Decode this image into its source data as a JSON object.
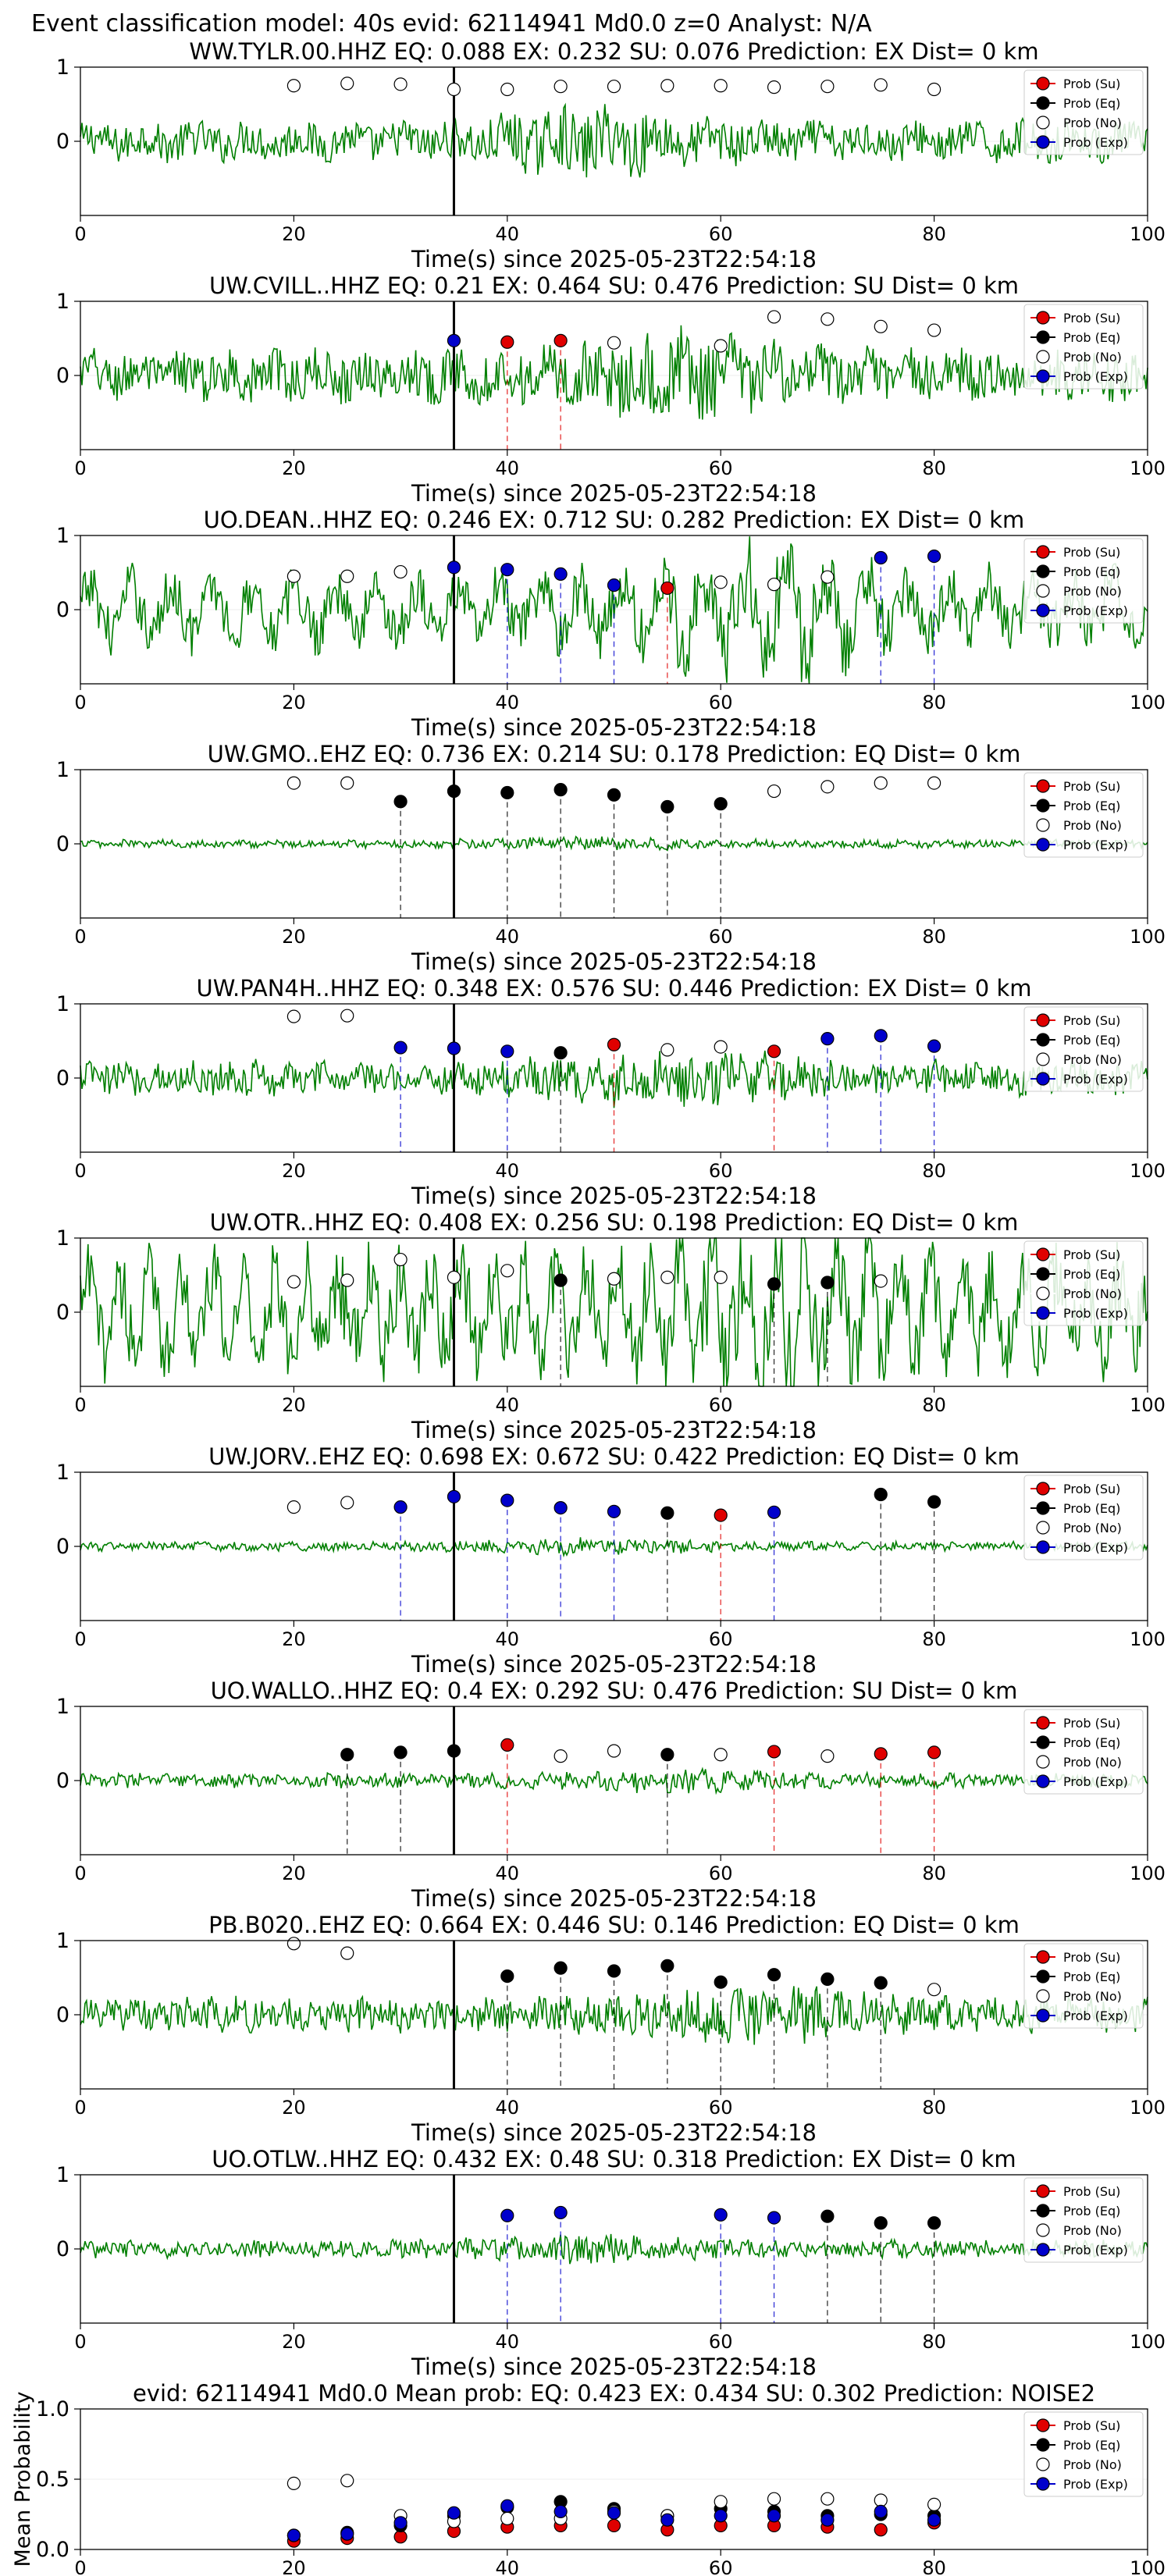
{
  "suptitle": "Event classification model: 40s evid: 62114941 Md0.0 z=0 Analyst: N/A",
  "xlabel": "Time(s) since 2025-05-23T22:54:18",
  "legend": [
    {
      "label": "Prob (Su)",
      "fill": "#e00000",
      "stroke": "#000000"
    },
    {
      "label": "Prob (Eq)",
      "fill": "#000000",
      "stroke": "#000000"
    },
    {
      "label": "Prob (No)",
      "fill": "#ffffff",
      "stroke": "#000000"
    },
    {
      "label": "Prob (Exp)",
      "fill": "#0000cc",
      "stroke": "#000000"
    }
  ],
  "colors": {
    "trace": "#007f00",
    "su": "#e00000",
    "eq": "#000000",
    "no": "#ffffff",
    "exp": "#0000cc",
    "pick": "#000000"
  },
  "chart_data": [
    {
      "type": "scatter",
      "title": "WW.TYLR.00.HHZ   EQ: 0.088  EX: 0.232  SU: 0.076   Prediction: EX    Dist= 0 km",
      "xlim": [
        0,
        100
      ],
      "ylim": [
        -1,
        1
      ],
      "xticks": [
        0,
        20,
        40,
        60,
        80,
        100
      ],
      "yticks": [
        0,
        1
      ],
      "pick_time": 35,
      "trace_amp": 0.35,
      "points": [
        {
          "x": 20,
          "y": 0.75,
          "c": "no"
        },
        {
          "x": 25,
          "y": 0.78,
          "c": "no"
        },
        {
          "x": 30,
          "y": 0.77,
          "c": "no"
        },
        {
          "x": 35,
          "y": 0.7,
          "c": "no"
        },
        {
          "x": 40,
          "y": 0.7,
          "c": "no"
        },
        {
          "x": 45,
          "y": 0.74,
          "c": "no"
        },
        {
          "x": 50,
          "y": 0.74,
          "c": "no"
        },
        {
          "x": 55,
          "y": 0.75,
          "c": "no"
        },
        {
          "x": 60,
          "y": 0.75,
          "c": "no"
        },
        {
          "x": 65,
          "y": 0.73,
          "c": "no"
        },
        {
          "x": 70,
          "y": 0.74,
          "c": "no"
        },
        {
          "x": 75,
          "y": 0.76,
          "c": "no"
        },
        {
          "x": 80,
          "y": 0.7,
          "c": "no"
        }
      ]
    },
    {
      "type": "scatter",
      "title": "UW.CVILL..HHZ   EQ: 0.21  EX: 0.464  SU: 0.476   Prediction: SU    Dist= 0 km",
      "xlim": [
        0,
        100
      ],
      "ylim": [
        -1,
        1
      ],
      "xticks": [
        0,
        20,
        40,
        60,
        80,
        100
      ],
      "yticks": [
        0,
        1
      ],
      "pick_time": 35,
      "trace_amp": 0.45,
      "points": [
        {
          "x": 35,
          "y": 0.47,
          "c": "exp"
        },
        {
          "x": 40,
          "y": 0.45,
          "c": "su"
        },
        {
          "x": 45,
          "y": 0.47,
          "c": "su"
        },
        {
          "x": 50,
          "y": 0.44,
          "c": "no"
        },
        {
          "x": 60,
          "y": 0.4,
          "c": "no"
        },
        {
          "x": 65,
          "y": 0.79,
          "c": "no"
        },
        {
          "x": 70,
          "y": 0.76,
          "c": "no"
        },
        {
          "x": 75,
          "y": 0.66,
          "c": "no"
        },
        {
          "x": 80,
          "y": 0.61,
          "c": "no"
        }
      ]
    },
    {
      "type": "scatter",
      "title": "UO.DEAN..HHZ   EQ: 0.246  EX: 0.712  SU: 0.282   Prediction: EX    Dist= 0 km",
      "xlim": [
        0,
        100
      ],
      "ylim": [
        -1,
        1
      ],
      "xticks": [
        0,
        20,
        40,
        60,
        80,
        100
      ],
      "yticks": [
        0,
        1
      ],
      "pick_time": 35,
      "trace_amp": 0.5,
      "points": [
        {
          "x": 20,
          "y": 0.45,
          "c": "no"
        },
        {
          "x": 25,
          "y": 0.45,
          "c": "no"
        },
        {
          "x": 30,
          "y": 0.51,
          "c": "no"
        },
        {
          "x": 35,
          "y": 0.57,
          "c": "exp"
        },
        {
          "x": 40,
          "y": 0.54,
          "c": "exp"
        },
        {
          "x": 45,
          "y": 0.48,
          "c": "exp"
        },
        {
          "x": 50,
          "y": 0.33,
          "c": "exp"
        },
        {
          "x": 55,
          "y": 0.29,
          "c": "su"
        },
        {
          "x": 60,
          "y": 0.37,
          "c": "no"
        },
        {
          "x": 65,
          "y": 0.34,
          "c": "no"
        },
        {
          "x": 70,
          "y": 0.44,
          "c": "no"
        },
        {
          "x": 75,
          "y": 0.7,
          "c": "exp"
        },
        {
          "x": 80,
          "y": 0.72,
          "c": "exp"
        }
      ]
    },
    {
      "type": "scatter",
      "title": "UW.GMO..EHZ   EQ: 0.736  EX: 0.214  SU: 0.178   Prediction: EQ    Dist= 0 km",
      "xlim": [
        0,
        100
      ],
      "ylim": [
        -1,
        1
      ],
      "xticks": [
        0,
        20,
        40,
        60,
        80,
        100
      ],
      "yticks": [
        0,
        1
      ],
      "pick_time": 35,
      "trace_amp": 0.07,
      "points": [
        {
          "x": 20,
          "y": 0.82,
          "c": "no"
        },
        {
          "x": 25,
          "y": 0.82,
          "c": "no"
        },
        {
          "x": 30,
          "y": 0.57,
          "c": "eq"
        },
        {
          "x": 35,
          "y": 0.71,
          "c": "eq"
        },
        {
          "x": 40,
          "y": 0.69,
          "c": "eq"
        },
        {
          "x": 45,
          "y": 0.73,
          "c": "eq"
        },
        {
          "x": 50,
          "y": 0.66,
          "c": "eq"
        },
        {
          "x": 55,
          "y": 0.5,
          "c": "eq"
        },
        {
          "x": 60,
          "y": 0.54,
          "c": "eq"
        },
        {
          "x": 65,
          "y": 0.71,
          "c": "no"
        },
        {
          "x": 70,
          "y": 0.77,
          "c": "no"
        },
        {
          "x": 75,
          "y": 0.82,
          "c": "no"
        },
        {
          "x": 80,
          "y": 0.82,
          "c": "no"
        }
      ]
    },
    {
      "type": "scatter",
      "title": "UW.PAN4H..HHZ   EQ: 0.348  EX: 0.576  SU: 0.446   Prediction: EX    Dist= 0 km",
      "xlim": [
        0,
        100
      ],
      "ylim": [
        -1,
        1
      ],
      "xticks": [
        0,
        20,
        40,
        60,
        80,
        100
      ],
      "yticks": [
        0,
        1
      ],
      "pick_time": 35,
      "trace_amp": 0.3,
      "points": [
        {
          "x": 20,
          "y": 0.83,
          "c": "no"
        },
        {
          "x": 25,
          "y": 0.84,
          "c": "no"
        },
        {
          "x": 30,
          "y": 0.41,
          "c": "exp"
        },
        {
          "x": 35,
          "y": 0.4,
          "c": "exp"
        },
        {
          "x": 40,
          "y": 0.36,
          "c": "exp"
        },
        {
          "x": 45,
          "y": 0.34,
          "c": "eq"
        },
        {
          "x": 50,
          "y": 0.45,
          "c": "su"
        },
        {
          "x": 55,
          "y": 0.38,
          "c": "no"
        },
        {
          "x": 60,
          "y": 0.42,
          "c": "no"
        },
        {
          "x": 65,
          "y": 0.36,
          "c": "su"
        },
        {
          "x": 70,
          "y": 0.53,
          "c": "exp"
        },
        {
          "x": 75,
          "y": 0.57,
          "c": "exp"
        },
        {
          "x": 80,
          "y": 0.43,
          "c": "exp"
        }
      ]
    },
    {
      "type": "scatter",
      "title": "UW.OTR..HHZ   EQ: 0.408  EX: 0.256  SU: 0.198   Prediction: EQ    Dist= 0 km",
      "xlim": [
        0,
        100
      ],
      "ylim": [
        -1,
        1
      ],
      "xticks": [
        0,
        20,
        40,
        60,
        80,
        100
      ],
      "yticks": [
        0,
        1
      ],
      "pick_time": 35,
      "trace_amp": 0.75,
      "points": [
        {
          "x": 20,
          "y": 0.41,
          "c": "no"
        },
        {
          "x": 25,
          "y": 0.43,
          "c": "no"
        },
        {
          "x": 30,
          "y": 0.71,
          "c": "no"
        },
        {
          "x": 35,
          "y": 0.47,
          "c": "no"
        },
        {
          "x": 40,
          "y": 0.56,
          "c": "no"
        },
        {
          "x": 45,
          "y": 0.43,
          "c": "eq"
        },
        {
          "x": 50,
          "y": 0.45,
          "c": "no"
        },
        {
          "x": 55,
          "y": 0.47,
          "c": "no"
        },
        {
          "x": 60,
          "y": 0.47,
          "c": "no"
        },
        {
          "x": 65,
          "y": 0.38,
          "c": "eq"
        },
        {
          "x": 70,
          "y": 0.4,
          "c": "eq"
        },
        {
          "x": 75,
          "y": 0.42,
          "c": "no"
        }
      ]
    },
    {
      "type": "scatter",
      "title": "UW.JORV..EHZ   EQ: 0.698  EX: 0.672  SU: 0.422   Prediction: EQ    Dist= 0 km",
      "xlim": [
        0,
        100
      ],
      "ylim": [
        -1,
        1
      ],
      "xticks": [
        0,
        20,
        40,
        60,
        80,
        100
      ],
      "yticks": [
        0,
        1
      ],
      "pick_time": 35,
      "trace_amp": 0.08,
      "points": [
        {
          "x": 20,
          "y": 0.53,
          "c": "no"
        },
        {
          "x": 25,
          "y": 0.59,
          "c": "no"
        },
        {
          "x": 30,
          "y": 0.53,
          "c": "exp"
        },
        {
          "x": 35,
          "y": 0.67,
          "c": "exp"
        },
        {
          "x": 40,
          "y": 0.62,
          "c": "exp"
        },
        {
          "x": 45,
          "y": 0.52,
          "c": "exp"
        },
        {
          "x": 50,
          "y": 0.47,
          "c": "exp"
        },
        {
          "x": 55,
          "y": 0.45,
          "c": "eq"
        },
        {
          "x": 60,
          "y": 0.42,
          "c": "su"
        },
        {
          "x": 65,
          "y": 0.46,
          "c": "exp"
        },
        {
          "x": 75,
          "y": 0.7,
          "c": "eq"
        },
        {
          "x": 80,
          "y": 0.6,
          "c": "eq"
        }
      ]
    },
    {
      "type": "scatter",
      "title": "UO.WALLO..HHZ   EQ: 0.4  EX: 0.292  SU: 0.476   Prediction: SU    Dist= 0 km",
      "xlim": [
        0,
        100
      ],
      "ylim": [
        -1,
        1
      ],
      "xticks": [
        0,
        20,
        40,
        60,
        80,
        100
      ],
      "yticks": [
        0,
        1
      ],
      "pick_time": 35,
      "trace_amp": 0.12,
      "points": [
        {
          "x": 25,
          "y": 0.35,
          "c": "eq"
        },
        {
          "x": 30,
          "y": 0.38,
          "c": "eq"
        },
        {
          "x": 35,
          "y": 0.4,
          "c": "eq"
        },
        {
          "x": 40,
          "y": 0.48,
          "c": "su"
        },
        {
          "x": 45,
          "y": 0.33,
          "c": "no"
        },
        {
          "x": 50,
          "y": 0.4,
          "c": "no"
        },
        {
          "x": 55,
          "y": 0.35,
          "c": "eq"
        },
        {
          "x": 60,
          "y": 0.35,
          "c": "no"
        },
        {
          "x": 65,
          "y": 0.39,
          "c": "su"
        },
        {
          "x": 70,
          "y": 0.33,
          "c": "no"
        },
        {
          "x": 75,
          "y": 0.36,
          "c": "su"
        },
        {
          "x": 80,
          "y": 0.38,
          "c": "su"
        }
      ]
    },
    {
      "type": "scatter",
      "title": "PB.B020..EHZ   EQ: 0.664  EX: 0.446  SU: 0.146   Prediction: EQ    Dist= 0 km",
      "xlim": [
        0,
        100
      ],
      "ylim": [
        -1,
        1
      ],
      "xticks": [
        0,
        20,
        40,
        60,
        80,
        100
      ],
      "yticks": [
        0,
        1
      ],
      "pick_time": 35,
      "trace_amp": 0.3,
      "points": [
        {
          "x": 20,
          "y": 0.96,
          "c": "no"
        },
        {
          "x": 25,
          "y": 0.83,
          "c": "no"
        },
        {
          "x": 40,
          "y": 0.52,
          "c": "eq"
        },
        {
          "x": 45,
          "y": 0.63,
          "c": "eq"
        },
        {
          "x": 50,
          "y": 0.59,
          "c": "eq"
        },
        {
          "x": 55,
          "y": 0.66,
          "c": "eq"
        },
        {
          "x": 60,
          "y": 0.44,
          "c": "eq"
        },
        {
          "x": 65,
          "y": 0.54,
          "c": "eq"
        },
        {
          "x": 70,
          "y": 0.48,
          "c": "eq"
        },
        {
          "x": 75,
          "y": 0.43,
          "c": "eq"
        },
        {
          "x": 80,
          "y": 0.34,
          "c": "no"
        }
      ]
    },
    {
      "type": "scatter",
      "title": "UO.OTLW..HHZ   EQ: 0.432  EX: 0.48  SU: 0.318   Prediction: EX    Dist= 0 km",
      "xlim": [
        0,
        100
      ],
      "ylim": [
        -1,
        1
      ],
      "xticks": [
        0,
        20,
        40,
        60,
        80,
        100
      ],
      "yticks": [
        0,
        1
      ],
      "pick_time": 35,
      "trace_amp": 0.15,
      "points": [
        {
          "x": 40,
          "y": 0.45,
          "c": "exp"
        },
        {
          "x": 45,
          "y": 0.49,
          "c": "exp"
        },
        {
          "x": 60,
          "y": 0.46,
          "c": "exp"
        },
        {
          "x": 65,
          "y": 0.42,
          "c": "exp"
        },
        {
          "x": 70,
          "y": 0.44,
          "c": "eq"
        },
        {
          "x": 75,
          "y": 0.35,
          "c": "eq"
        },
        {
          "x": 80,
          "y": 0.35,
          "c": "eq"
        }
      ]
    },
    {
      "type": "scatter",
      "title": "evid: 62114941  Md0.0   Mean prob:   EQ: 0.423  EX: 0.434  SU: 0.302   Prediction: NOISE2",
      "ylabel": "Mean Probability",
      "xlim": [
        0,
        100
      ],
      "ylim": [
        0,
        1
      ],
      "xticks": [
        0,
        20,
        40,
        60,
        80,
        100
      ],
      "yticks": [
        0.0,
        0.5,
        1.0
      ],
      "ytick_labels": [
        "0.0",
        "0.5",
        "1.0"
      ],
      "series": [
        {
          "name": "Prob (Su)",
          "c": "su",
          "x": [
            20,
            25,
            30,
            35,
            40,
            45,
            50,
            55,
            60,
            65,
            70,
            75,
            80
          ],
          "y": [
            0.06,
            0.08,
            0.09,
            0.13,
            0.16,
            0.17,
            0.17,
            0.14,
            0.17,
            0.17,
            0.16,
            0.14,
            0.19
          ]
        },
        {
          "name": "Prob (Eq)",
          "c": "eq",
          "x": [
            20,
            25,
            30,
            35,
            40,
            45,
            50,
            55,
            60,
            65,
            70,
            75,
            80
          ],
          "y": [
            0.1,
            0.12,
            0.17,
            0.24,
            0.3,
            0.34,
            0.29,
            0.24,
            0.29,
            0.27,
            0.24,
            0.25,
            0.24
          ]
        },
        {
          "name": "Prob (No)",
          "c": "no",
          "x": [
            20,
            25,
            30,
            35,
            40,
            45,
            50,
            55,
            60,
            65,
            70,
            75,
            80
          ],
          "y": [
            0.47,
            0.49,
            0.24,
            0.2,
            0.22,
            0.22,
            0.27,
            0.24,
            0.34,
            0.36,
            0.36,
            0.35,
            0.32
          ]
        },
        {
          "name": "Prob (Exp)",
          "c": "exp",
          "x": [
            20,
            25,
            30,
            35,
            40,
            45,
            50,
            55,
            60,
            65,
            70,
            75,
            80
          ],
          "y": [
            0.1,
            0.11,
            0.19,
            0.26,
            0.31,
            0.27,
            0.26,
            0.21,
            0.24,
            0.24,
            0.21,
            0.27,
            0.21
          ]
        }
      ]
    }
  ]
}
